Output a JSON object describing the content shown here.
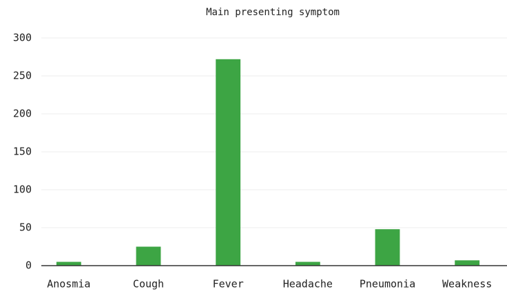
{
  "chart_data": {
    "type": "bar",
    "title": "Main presenting symptom",
    "categories": [
      "Anosmia",
      "Cough",
      "Fever",
      "Headache",
      "Pneumonia",
      "Weakness"
    ],
    "values": [
      5,
      25,
      272,
      5,
      48,
      7
    ],
    "color": "#3da544",
    "ylim": [
      0,
      300
    ],
    "yticks": [
      0,
      50,
      100,
      150,
      200,
      250,
      300
    ],
    "grid": true
  }
}
